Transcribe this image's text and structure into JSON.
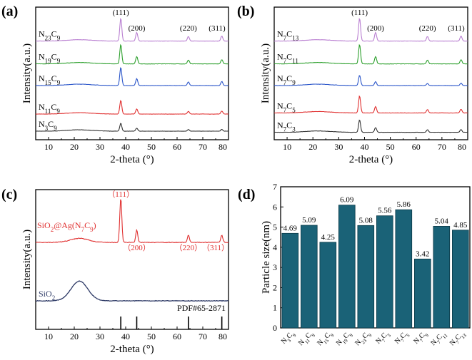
{
  "chart_data": [
    {
      "panel": "(a)",
      "type": "line",
      "xlabel": "2-theta (°)",
      "ylabel": "Intensity(a.u.)",
      "xlim": [
        5,
        80
      ],
      "xticks": [
        "10",
        "20",
        "30",
        "40",
        "50",
        "60",
        "70",
        "80"
      ],
      "peaks": [
        {
          "label": "(111)",
          "x": 38.1,
          "rel": 1.0
        },
        {
          "label": "(200)",
          "x": 44.3,
          "rel": 0.38
        },
        {
          "label": "(220)",
          "x": 64.4,
          "rel": 0.2
        },
        {
          "label": "(311)",
          "x": 77.4,
          "rel": 0.22
        }
      ],
      "series": [
        {
          "name": "N",
          "sub1": "23",
          "mid": "C",
          "sub2": "9",
          "color": "#b97fd1",
          "base": 0.84,
          "scale": 1.0
        },
        {
          "name": "N",
          "sub1": "19",
          "mid": "C",
          "sub2": "9",
          "color": "#2ea02e",
          "base": 0.64,
          "scale": 0.85
        },
        {
          "name": "N",
          "sub1": "15",
          "mid": "C",
          "sub2": "9",
          "color": "#2a55c9",
          "base": 0.45,
          "scale": 0.8
        },
        {
          "name": "N",
          "sub1": "11",
          "mid": "C",
          "sub2": "9",
          "color": "#e03030",
          "base": 0.2,
          "scale": 0.6
        },
        {
          "name": "N",
          "sub1": "3",
          "mid": "C",
          "sub2": "9",
          "color": "#333333",
          "base": 0.05,
          "scale": 0.35
        }
      ]
    },
    {
      "panel": "(b)",
      "type": "line",
      "xlabel": "2-theta (°)",
      "ylabel": "Intensity(a.u.)",
      "xlim": [
        5,
        80
      ],
      "xticks": [
        "10",
        "20",
        "30",
        "40",
        "50",
        "60",
        "70",
        "80"
      ],
      "peaks": [
        {
          "label": "(111)",
          "x": 38.1,
          "rel": 1.0
        },
        {
          "label": "(200)",
          "x": 44.3,
          "rel": 0.38
        },
        {
          "label": "(220)",
          "x": 64.4,
          "rel": 0.2
        },
        {
          "label": "(311)",
          "x": 77.4,
          "rel": 0.22
        }
      ],
      "series": [
        {
          "name": "N",
          "sub1": "7",
          "mid": "C",
          "sub2": "13",
          "color": "#b97fd1",
          "base": 0.84,
          "scale": 1.0
        },
        {
          "name": "N",
          "sub1": "7",
          "mid": "C",
          "sub2": "11",
          "color": "#2ea02e",
          "base": 0.64,
          "scale": 0.85
        },
        {
          "name": "N",
          "sub1": "7",
          "mid": "C",
          "sub2": "9",
          "color": "#2a55c9",
          "base": 0.45,
          "scale": 0.45
        },
        {
          "name": "N",
          "sub1": "7",
          "mid": "C",
          "sub2": "5",
          "color": "#e03030",
          "base": 0.21,
          "scale": 0.75
        },
        {
          "name": "N",
          "sub1": "7",
          "mid": "C",
          "sub2": "3",
          "color": "#333333",
          "base": 0.04,
          "scale": 0.55
        }
      ]
    },
    {
      "panel": "(c)",
      "type": "line",
      "xlabel": "2-theta (°)",
      "ylabel": "Intensity(a.u.)",
      "xlim": [
        5,
        80
      ],
      "xticks": [
        "10",
        "20",
        "30",
        "40",
        "50",
        "60",
        "70",
        "80"
      ],
      "peaks": [
        {
          "label": "（111）",
          "x": 38.1,
          "rel": 1.0
        },
        {
          "label": "（200）",
          "x": 44.3,
          "rel": 0.28
        },
        {
          "label": "（220）",
          "x": 64.4,
          "rel": 0.16
        },
        {
          "label": "（311）",
          "x": 77.4,
          "rel": 0.16
        }
      ],
      "series": [
        {
          "name": "SiO",
          "sub1": "2",
          "tail": "@Ag(N",
          "sub2": "7",
          "mid": "C",
          "sub3": "9",
          "end": ")",
          "color": "#e03030"
        },
        {
          "name": "SiO",
          "sub1": "2",
          "color": "#2e3a66"
        }
      ],
      "reference": {
        "label": "PDF#65-2871",
        "lines": [
          38.1,
          44.3,
          64.4,
          77.4
        ]
      }
    },
    {
      "panel": "(d)",
      "type": "bar",
      "ylabel": "Particle size(nm)",
      "ylim": [
        0,
        7
      ],
      "yticks": [
        "0",
        "1",
        "2",
        "3",
        "4",
        "5",
        "6",
        "7"
      ],
      "color": "#1a6277",
      "categories": [
        {
          "a": "N",
          "s1": "3",
          "b": "C",
          "s2": "9"
        },
        {
          "a": "N",
          "s1": "11",
          "b": "C",
          "s2": "9"
        },
        {
          "a": "N",
          "s1": "15",
          "b": "C",
          "s2": "9"
        },
        {
          "a": "N",
          "s1": "19",
          "b": "C",
          "s2": "9"
        },
        {
          "a": "N",
          "s1": "23",
          "b": "C",
          "s2": "9"
        },
        {
          "a": "N",
          "s1": "7",
          "b": "C",
          "s2": "3"
        },
        {
          "a": "N",
          "s1": "7",
          "b": "C",
          "s2": "5"
        },
        {
          "a": "N",
          "s1": "7",
          "b": "C",
          "s2": "9"
        },
        {
          "a": "N",
          "s1": "7",
          "b": "C",
          "s2": "11"
        },
        {
          "a": "N",
          "s1": "7",
          "b": "C",
          "s2": "13"
        }
      ],
      "values": [
        4.69,
        5.09,
        4.25,
        6.09,
        5.08,
        5.56,
        5.86,
        3.42,
        5.04,
        4.85
      ],
      "value_labels": [
        "4.69",
        "5.09",
        "4.25",
        "6.09",
        "5.08",
        "5.56",
        "5.86",
        "3.42",
        "5.04",
        "4.85"
      ]
    }
  ]
}
